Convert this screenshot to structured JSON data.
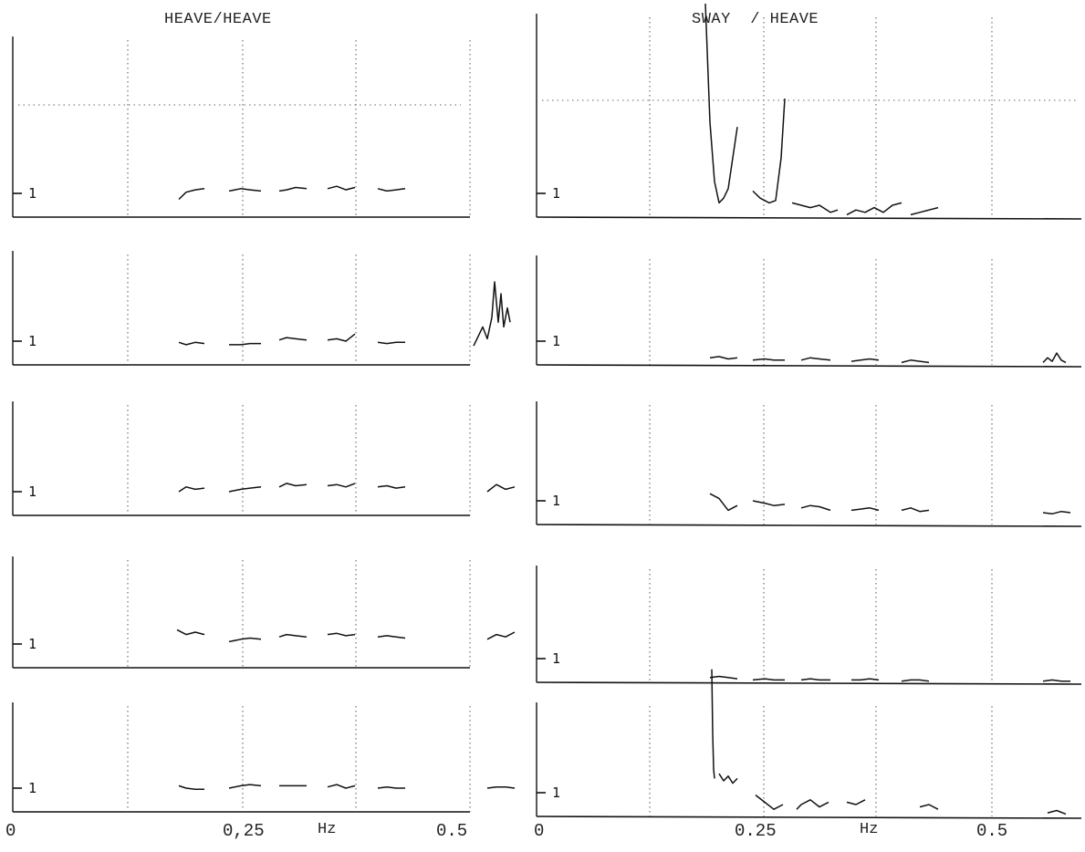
{
  "chart_data": [
    {
      "type": "line",
      "title": "HEAVE/HEAVE",
      "xlabel": "Hz",
      "x_tick_labels": [
        "0",
        "0,25",
        "Hz",
        "0.5"
      ],
      "y_tick_label": "1",
      "grid": "dotted vertical",
      "panels": [
        {
          "segments": [
            {
              "x": [
                0.182,
                0.19,
                0.2,
                0.21
              ],
              "y": [
                0.75,
                1.05,
                1.15,
                1.2
              ]
            },
            {
              "x": [
                0.237,
                0.25,
                0.26,
                0.272
              ],
              "y": [
                1.1,
                1.2,
                1.15,
                1.1
              ]
            },
            {
              "x": [
                0.292,
                0.3,
                0.31,
                0.322
              ],
              "y": [
                1.1,
                1.15,
                1.25,
                1.2
              ]
            },
            {
              "x": [
                0.345,
                0.355,
                0.365,
                0.375
              ],
              "y": [
                1.2,
                1.3,
                1.15,
                1.25
              ]
            },
            {
              "x": [
                0.4,
                0.41,
                0.42,
                0.43
              ],
              "y": [
                1.2,
                1.1,
                1.15,
                1.2
              ]
            }
          ]
        },
        {
          "segments": [
            {
              "x": [
                0.182,
                0.19,
                0.2,
                0.21
              ],
              "y": [
                0.95,
                0.85,
                0.95,
                0.9
              ]
            },
            {
              "x": [
                0.237,
                0.25,
                0.26,
                0.272
              ],
              "y": [
                0.85,
                0.85,
                0.9,
                0.9
              ]
            },
            {
              "x": [
                0.292,
                0.3,
                0.31,
                0.322
              ],
              "y": [
                1.05,
                1.15,
                1.1,
                1.05
              ]
            },
            {
              "x": [
                0.345,
                0.355,
                0.365,
                0.375
              ],
              "y": [
                1.05,
                1.1,
                1.0,
                1.3
              ]
            },
            {
              "x": [
                0.4,
                0.41,
                0.42,
                0.43
              ],
              "y": [
                0.95,
                0.9,
                0.95,
                0.95
              ]
            },
            {
              "x": [
                0.505,
                0.51,
                0.515,
                0.52,
                0.525,
                0.528,
                0.532,
                0.535,
                0.538,
                0.542,
                0.545
              ],
              "y": [
                0.8,
                1.2,
                1.6,
                1.1,
                2.0,
                3.5,
                1.8,
                3.0,
                1.6,
                2.4,
                1.8
              ]
            }
          ]
        },
        {
          "segments": [
            {
              "x": [
                0.182,
                0.19,
                0.2,
                0.21
              ],
              "y": [
                1.0,
                1.2,
                1.1,
                1.15
              ]
            },
            {
              "x": [
                0.237,
                0.25,
                0.26,
                0.272
              ],
              "y": [
                1.0,
                1.1,
                1.15,
                1.2
              ]
            },
            {
              "x": [
                0.292,
                0.3,
                0.31,
                0.322
              ],
              "y": [
                1.2,
                1.35,
                1.25,
                1.3
              ]
            },
            {
              "x": [
                0.345,
                0.355,
                0.365,
                0.375
              ],
              "y": [
                1.25,
                1.3,
                1.2,
                1.35
              ]
            },
            {
              "x": [
                0.4,
                0.41,
                0.42,
                0.43
              ],
              "y": [
                1.2,
                1.25,
                1.15,
                1.2
              ]
            },
            {
              "x": [
                0.52,
                0.53,
                0.54,
                0.55
              ],
              "y": [
                1.0,
                1.3,
                1.1,
                1.2
              ]
            }
          ]
        },
        {
          "segments": [
            {
              "x": [
                0.18,
                0.19,
                0.2,
                0.21
              ],
              "y": [
                1.6,
                1.4,
                1.5,
                1.4
              ]
            },
            {
              "x": [
                0.237,
                0.25,
                0.26,
                0.272
              ],
              "y": [
                1.1,
                1.2,
                1.25,
                1.2
              ]
            },
            {
              "x": [
                0.292,
                0.3,
                0.31,
                0.322
              ],
              "y": [
                1.3,
                1.4,
                1.35,
                1.3
              ]
            },
            {
              "x": [
                0.345,
                0.355,
                0.365,
                0.375
              ],
              "y": [
                1.4,
                1.45,
                1.35,
                1.4
              ]
            },
            {
              "x": [
                0.4,
                0.41,
                0.42,
                0.43
              ],
              "y": [
                1.3,
                1.35,
                1.3,
                1.25
              ]
            },
            {
              "x": [
                0.52,
                0.53,
                0.54,
                0.55
              ],
              "y": [
                1.2,
                1.4,
                1.3,
                1.5
              ]
            }
          ]
        },
        {
          "segments": [
            {
              "x": [
                0.182,
                0.19,
                0.2,
                0.21
              ],
              "y": [
                1.1,
                1.0,
                0.95,
                0.95
              ]
            },
            {
              "x": [
                0.237,
                0.25,
                0.26,
                0.272
              ],
              "y": [
                1.0,
                1.1,
                1.15,
                1.1
              ]
            },
            {
              "x": [
                0.292,
                0.3,
                0.31,
                0.322
              ],
              "y": [
                1.1,
                1.1,
                1.1,
                1.1
              ]
            },
            {
              "x": [
                0.345,
                0.355,
                0.365,
                0.375
              ],
              "y": [
                1.05,
                1.15,
                1.0,
                1.1
              ]
            },
            {
              "x": [
                0.4,
                0.41,
                0.42,
                0.43
              ],
              "y": [
                1.0,
                1.05,
                1.0,
                1.0
              ]
            },
            {
              "x": [
                0.52,
                0.53,
                0.54,
                0.55
              ],
              "y": [
                1.0,
                1.05,
                1.05,
                1.0
              ]
            }
          ]
        }
      ]
    },
    {
      "type": "line",
      "title": "SWAY  / HEAVE",
      "xlabel": "Hz",
      "x_tick_labels": [
        "0",
        "0.25",
        "Hz",
        "0.5"
      ],
      "y_tick_label": "1",
      "grid": "dotted vertical",
      "panels": [
        {
          "segments": [
            {
              "x": [
                0.185,
                0.19,
                0.195,
                0.2,
                0.205,
                0.21,
                0.215,
                0.22
              ],
              "y": [
                9.0,
                4.0,
                1.5,
                0.6,
                0.8,
                1.2,
                2.5,
                3.8
              ]
            },
            {
              "x": [
                0.237,
                0.245,
                0.255,
                0.262,
                0.268,
                0.272
              ],
              "y": [
                1.1,
                0.8,
                0.6,
                0.7,
                2.5,
                5.0
              ]
            },
            {
              "x": [
                0.28,
                0.3,
                0.31,
                0.322,
                0.33
              ],
              "y": [
                0.6,
                0.4,
                0.5,
                0.2,
                0.3
              ]
            },
            {
              "x": [
                0.34,
                0.35,
                0.36,
                0.37,
                0.38,
                0.39,
                0.4
              ],
              "y": [
                0.1,
                0.3,
                0.2,
                0.4,
                0.2,
                0.5,
                0.6
              ]
            },
            {
              "x": [
                0.41,
                0.42,
                0.43,
                0.44
              ],
              "y": [
                0.1,
                0.2,
                0.3,
                0.4
              ]
            }
          ]
        },
        {
          "segments": [
            {
              "x": [
                0.19,
                0.2,
                0.21,
                0.22
              ],
              "y": [
                0.3,
                0.35,
                0.25,
                0.3
              ]
            },
            {
              "x": [
                0.237,
                0.25,
                0.26,
                0.272
              ],
              "y": [
                0.2,
                0.25,
                0.2,
                0.2
              ]
            },
            {
              "x": [
                0.29,
                0.3,
                0.31,
                0.322
              ],
              "y": [
                0.2,
                0.3,
                0.25,
                0.2
              ]
            },
            {
              "x": [
                0.345,
                0.355,
                0.365,
                0.375
              ],
              "y": [
                0.15,
                0.2,
                0.25,
                0.2
              ]
            },
            {
              "x": [
                0.4,
                0.41,
                0.42,
                0.43
              ],
              "y": [
                0.1,
                0.2,
                0.15,
                0.1
              ]
            },
            {
              "x": [
                0.555,
                0.56,
                0.565,
                0.57,
                0.575,
                0.58
              ],
              "y": [
                0.1,
                0.3,
                0.15,
                0.5,
                0.2,
                0.1
              ]
            }
          ]
        },
        {
          "segments": [
            {
              "x": [
                0.19,
                0.2,
                0.21,
                0.22
              ],
              "y": [
                1.3,
                1.1,
                0.6,
                0.8
              ]
            },
            {
              "x": [
                0.237,
                0.25,
                0.26,
                0.272
              ],
              "y": [
                1.0,
                0.9,
                0.8,
                0.85
              ]
            },
            {
              "x": [
                0.29,
                0.3,
                0.31,
                0.322
              ],
              "y": [
                0.7,
                0.8,
                0.75,
                0.6
              ]
            },
            {
              "x": [
                0.345,
                0.355,
                0.365,
                0.375
              ],
              "y": [
                0.6,
                0.65,
                0.7,
                0.6
              ]
            },
            {
              "x": [
                0.4,
                0.41,
                0.42,
                0.43
              ],
              "y": [
                0.6,
                0.7,
                0.55,
                0.6
              ]
            },
            {
              "x": [
                0.555,
                0.565,
                0.575,
                0.585
              ],
              "y": [
                0.5,
                0.45,
                0.55,
                0.5
              ]
            }
          ]
        },
        {
          "segments": [
            {
              "x": [
                0.19,
                0.2,
                0.21,
                0.22
              ],
              "y": [
                0.2,
                0.25,
                0.2,
                0.15
              ]
            },
            {
              "x": [
                0.237,
                0.25,
                0.26,
                0.272
              ],
              "y": [
                0.1,
                0.15,
                0.1,
                0.1
              ]
            },
            {
              "x": [
                0.29,
                0.3,
                0.31,
                0.322
              ],
              "y": [
                0.1,
                0.15,
                0.1,
                0.1
              ]
            },
            {
              "x": [
                0.345,
                0.355,
                0.365,
                0.375
              ],
              "y": [
                0.1,
                0.1,
                0.15,
                0.1
              ]
            },
            {
              "x": [
                0.4,
                0.41,
                0.42,
                0.43
              ],
              "y": [
                0.05,
                0.1,
                0.1,
                0.05
              ]
            },
            {
              "x": [
                0.555,
                0.565,
                0.575,
                0.585
              ],
              "y": [
                0.05,
                0.1,
                0.05,
                0.05
              ]
            }
          ]
        },
        {
          "segments": [
            {
              "x": [
                0.192,
                0.193,
                0.194,
                0.195
              ],
              "y": [
                6.2,
                3.5,
                2.0,
                1.6
              ]
            },
            {
              "x": [
                0.2,
                0.205,
                0.21,
                0.215,
                0.22
              ],
              "y": [
                1.8,
                1.5,
                1.7,
                1.4,
                1.6
              ]
            },
            {
              "x": [
                0.24,
                0.25,
                0.26,
                0.27
              ],
              "y": [
                0.9,
                0.6,
                0.3,
                0.5
              ]
            },
            {
              "x": [
                0.285,
                0.29,
                0.3,
                0.31,
                0.32
              ],
              "y": [
                0.3,
                0.5,
                0.7,
                0.4,
                0.6
              ]
            },
            {
              "x": [
                0.34,
                0.35,
                0.36
              ],
              "y": [
                0.6,
                0.5,
                0.7
              ]
            },
            {
              "x": [
                0.42,
                0.43,
                0.44
              ],
              "y": [
                0.4,
                0.5,
                0.3
              ]
            },
            {
              "x": [
                0.56,
                0.57,
                0.58
              ],
              "y": [
                0.15,
                0.25,
                0.1
              ]
            }
          ]
        }
      ]
    }
  ]
}
